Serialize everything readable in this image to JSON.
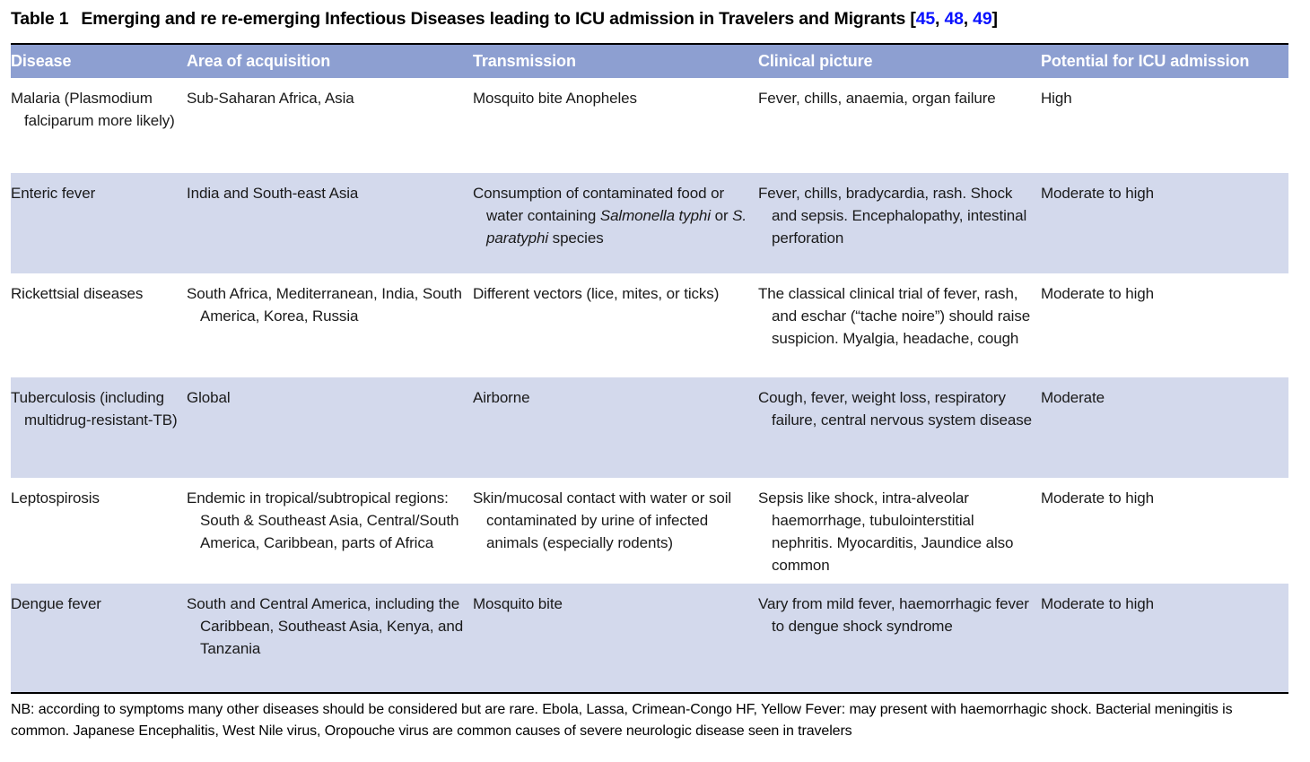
{
  "colors": {
    "header-bg": "#8d9fd1",
    "row-shade": "#d3d9ec",
    "header-text": "#ffffff",
    "body-text": "#1a1a1a",
    "cite-blue": "#0a12ff",
    "rule": "#000000"
  },
  "title": {
    "label": "Table 1",
    "text": "Emerging and re re-emerging Infectious Diseases leading to ICU admission in Travelers and Migrants",
    "bracket_open": "[",
    "separator": ", ",
    "bracket_close": "]",
    "citations": [
      "45",
      "48",
      "49"
    ]
  },
  "table": {
    "columns": [
      "Disease",
      "Area of acquisition",
      "Transmission",
      "Clinical picture",
      "Potential for ICU admission"
    ],
    "rows": [
      {
        "disease": "Malaria (Plasmodium falciparum more likely)",
        "area": "Sub-Saharan Africa, Asia",
        "transmission": "Mosquito bite Anopheles",
        "clinical": "Fever, chills, anaemia, organ failure",
        "icu": "High"
      },
      {
        "disease": "Enteric fever",
        "area": "India and South-east Asia",
        "transmission_rich": [
          {
            "t": "Consumption of contaminated food or water containing "
          },
          {
            "t": "Salmonella typhi",
            "i": true
          },
          {
            "t": " or "
          },
          {
            "t": "S. paratyphi",
            "i": true
          },
          {
            "t": " species"
          }
        ],
        "clinical": "Fever, chills, bradycardia, rash. Shock and sepsis. Encephalopathy, intestinal perforation",
        "icu": "Moderate to high"
      },
      {
        "disease": "Rickettsial diseases",
        "area": "South Africa, Mediterranean, India, South America, Korea, Russia",
        "transmission": "Different vectors (lice, mites, or ticks)",
        "clinical": "The classical clinical trial of fever, rash, and eschar (“tache noire”) should raise suspicion. Myalgia, headache, cough",
        "icu": "Moderate to high"
      },
      {
        "disease": "Tuberculosis (including multidrug-resistant-TB)",
        "area": "Global",
        "transmission": "Airborne",
        "clinical": "Cough, fever, weight loss, respiratory failure, central nervous system disease",
        "icu": "Moderate"
      },
      {
        "disease": "Leptospirosis",
        "area": "Endemic in tropical/subtropical regions: South & Southeast Asia, Central/South America, Caribbean, parts of Africa",
        "transmission": "Skin/mucosal contact with water or soil contaminated by urine of infected animals (especially rodents)",
        "clinical": "Sepsis like shock, intra-alveolar haemorrhage, tubulointerstitial nephritis. Myocarditis, Jaundice also common",
        "icu": "Moderate to high"
      },
      {
        "disease": "Dengue fever",
        "area": "South and Central America, including the Caribbean, Southeast Asia, Kenya, and Tanzania",
        "transmission": "Mosquito bite",
        "clinical": "Vary from mild fever, haemorrhagic fever to dengue shock syndrome",
        "icu": "Moderate to high"
      }
    ]
  },
  "footnote": "NB: according to symptoms many other diseases should be considered but are rare. Ebola, Lassa, Crimean-Congo HF, Yellow Fever: may present with haemorrhagic shock. Bacterial meningitis is common. Japanese Encephalitis, West Nile virus, Oropouche virus are common causes of severe neurologic disease seen in travelers"
}
